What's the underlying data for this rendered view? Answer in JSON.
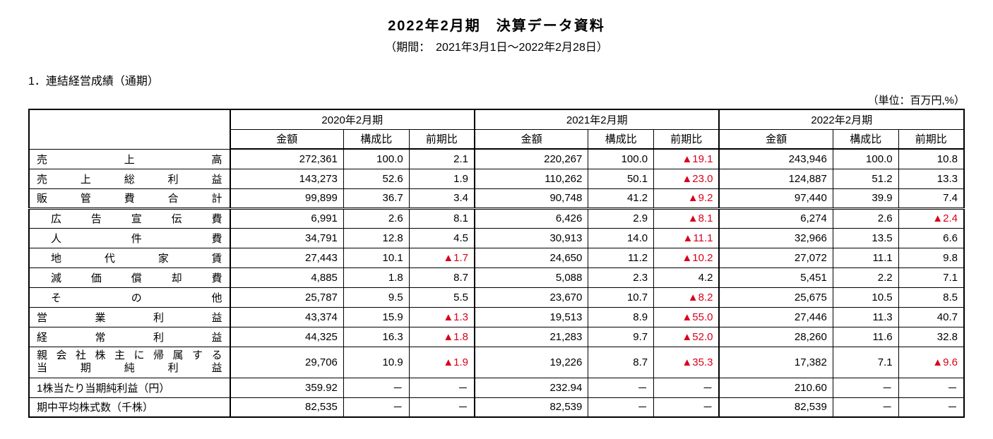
{
  "title": "2022年2月期　決算データ資料",
  "subtitle": "（期間：　2021年3月1日～2022年2月28日）",
  "section": "1．連結経営成績（通期）",
  "unit": "（単位：百万円,%）",
  "periods": [
    "2020年2月期",
    "2021年2月期",
    "2022年2月期"
  ],
  "subheaders": [
    "金額",
    "構成比",
    "前期比"
  ],
  "rows": [
    {
      "label": "売上高",
      "indent": false,
      "p1": {
        "amt": "272,361",
        "ratio": "100.0",
        "yoy": "2.1"
      },
      "p2": {
        "amt": "220,267",
        "ratio": "100.0",
        "yoy": "▲19.1",
        "yoy_neg": true
      },
      "p3": {
        "amt": "243,946",
        "ratio": "100.0",
        "yoy": "10.8"
      }
    },
    {
      "label": "売上総利益",
      "indent": false,
      "p1": {
        "amt": "143,273",
        "ratio": "52.6",
        "yoy": "1.9"
      },
      "p2": {
        "amt": "110,262",
        "ratio": "50.1",
        "yoy": "▲23.0",
        "yoy_neg": true
      },
      "p3": {
        "amt": "124,887",
        "ratio": "51.2",
        "yoy": "13.3"
      }
    },
    {
      "label": "販管費合計",
      "indent": false,
      "double_bottom": true,
      "p1": {
        "amt": "99,899",
        "ratio": "36.7",
        "yoy": "3.4"
      },
      "p2": {
        "amt": "90,748",
        "ratio": "41.2",
        "yoy": "▲9.2",
        "yoy_neg": true
      },
      "p3": {
        "amt": "97,440",
        "ratio": "39.9",
        "yoy": "7.4"
      }
    },
    {
      "label": "広告宣伝費",
      "indent": true,
      "p1": {
        "amt": "6,991",
        "ratio": "2.6",
        "yoy": "8.1"
      },
      "p2": {
        "amt": "6,426",
        "ratio": "2.9",
        "yoy": "▲8.1",
        "yoy_neg": true
      },
      "p3": {
        "amt": "6,274",
        "ratio": "2.6",
        "yoy": "▲2.4",
        "yoy_neg": true
      }
    },
    {
      "label": "人件費",
      "indent": true,
      "p1": {
        "amt": "34,791",
        "ratio": "12.8",
        "yoy": "4.5"
      },
      "p2": {
        "amt": "30,913",
        "ratio": "14.0",
        "yoy": "▲11.1",
        "yoy_neg": true
      },
      "p3": {
        "amt": "32,966",
        "ratio": "13.5",
        "yoy": "6.6"
      }
    },
    {
      "label": "地代家賃",
      "indent": true,
      "p1": {
        "amt": "27,443",
        "ratio": "10.1",
        "yoy": "▲1.7",
        "yoy_neg": true
      },
      "p2": {
        "amt": "24,650",
        "ratio": "11.2",
        "yoy": "▲10.2",
        "yoy_neg": true
      },
      "p3": {
        "amt": "27,072",
        "ratio": "11.1",
        "yoy": "9.8"
      }
    },
    {
      "label": "減価償却費",
      "indent": true,
      "p1": {
        "amt": "4,885",
        "ratio": "1.8",
        "yoy": "8.7"
      },
      "p2": {
        "amt": "5,088",
        "ratio": "2.3",
        "yoy": "4.2"
      },
      "p3": {
        "amt": "5,451",
        "ratio": "2.2",
        "yoy": "7.1"
      }
    },
    {
      "label": "その他",
      "indent": true,
      "p1": {
        "amt": "25,787",
        "ratio": "9.5",
        "yoy": "5.5"
      },
      "p2": {
        "amt": "23,670",
        "ratio": "10.7",
        "yoy": "▲8.2",
        "yoy_neg": true
      },
      "p3": {
        "amt": "25,675",
        "ratio": "10.5",
        "yoy": "8.5"
      }
    },
    {
      "label": "営業利益",
      "indent": false,
      "p1": {
        "amt": "43,374",
        "ratio": "15.9",
        "yoy": "▲1.3",
        "yoy_neg": true
      },
      "p2": {
        "amt": "19,513",
        "ratio": "8.9",
        "yoy": "▲55.0",
        "yoy_neg": true
      },
      "p3": {
        "amt": "27,446",
        "ratio": "11.3",
        "yoy": "40.7"
      }
    },
    {
      "label": "経常利益",
      "indent": false,
      "p1": {
        "amt": "44,325",
        "ratio": "16.3",
        "yoy": "▲1.8",
        "yoy_neg": true
      },
      "p2": {
        "amt": "21,283",
        "ratio": "9.7",
        "yoy": "▲52.0",
        "yoy_neg": true
      },
      "p3": {
        "amt": "28,260",
        "ratio": "11.6",
        "yoy": "32.8"
      }
    },
    {
      "label": "親会社株主に帰属する当期純利益",
      "label_l1": "親会社株主に帰属する",
      "label_l2": "当期純利益",
      "multiline": true,
      "indent": false,
      "p1": {
        "amt": "29,706",
        "ratio": "10.9",
        "yoy": "▲1.9",
        "yoy_neg": true
      },
      "p2": {
        "amt": "19,226",
        "ratio": "8.7",
        "yoy": "▲35.3",
        "yoy_neg": true
      },
      "p3": {
        "amt": "17,382",
        "ratio": "7.1",
        "yoy": "▲9.6",
        "yoy_neg": true
      }
    },
    {
      "label": "1株当たり当期純利益（円）",
      "no_justify": true,
      "indent": false,
      "p1": {
        "amt": "359.92",
        "ratio": "－",
        "yoy": "－"
      },
      "p2": {
        "amt": "232.94",
        "ratio": "－",
        "yoy": "－"
      },
      "p3": {
        "amt": "210.60",
        "ratio": "－",
        "yoy": "－"
      }
    },
    {
      "label": "期中平均株式数（千株）",
      "no_justify": true,
      "indent": false,
      "thick_bottom": true,
      "p1": {
        "amt": "82,535",
        "ratio": "－",
        "yoy": "－"
      },
      "p2": {
        "amt": "82,539",
        "ratio": "－",
        "yoy": "－"
      },
      "p3": {
        "amt": "82,539",
        "ratio": "－",
        "yoy": "－"
      }
    }
  ],
  "style": {
    "neg_color": "#d9001b",
    "text_color": "#000000",
    "background": "#ffffff",
    "border_color": "#000000",
    "title_fontsize": 20,
    "body_fontsize": 15
  }
}
